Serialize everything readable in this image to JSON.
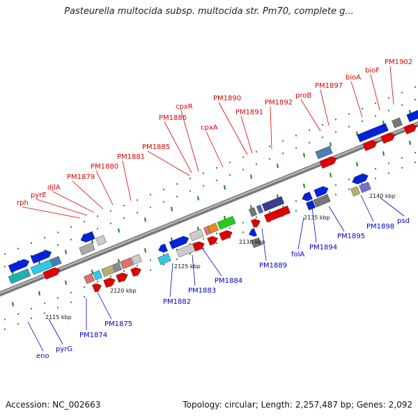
{
  "title": "Pasteurella multocida subsp. multocida str. Pm70, complete g...",
  "accession": "Accession: NC_002663",
  "summary": "Topology: circular; Length: 2,257,487 bp; Genes: 2,092",
  "colors": {
    "label_forward": "#dd0000",
    "label_reverse": "#0000cc",
    "backbone": "#8a8a8a",
    "tick_green": "#118811"
  },
  "ruler": [
    "2115 kbp",
    "2120 kbp",
    "2125 kbp",
    "2130 kbp",
    "2135 kbp",
    "2140 kbp"
  ],
  "forward_genes": [
    "rph",
    "pyrE",
    "djlA",
    "PM1879",
    "PM1880",
    "PM1881",
    "PM1885",
    "PM1886",
    "cpxR",
    "cpxA",
    "PM1890",
    "PM1891",
    "PM1892",
    "proB",
    "PM1897",
    "bioA",
    "bioF",
    "PM1902"
  ],
  "reverse_genes": [
    "eno",
    "pyrG",
    "PM1874",
    "PM1875",
    "PM1882",
    "PM1883",
    "PM1884",
    "PM1889",
    "folA",
    "PM1894",
    "PM1895",
    "PM1898",
    "psd"
  ]
}
